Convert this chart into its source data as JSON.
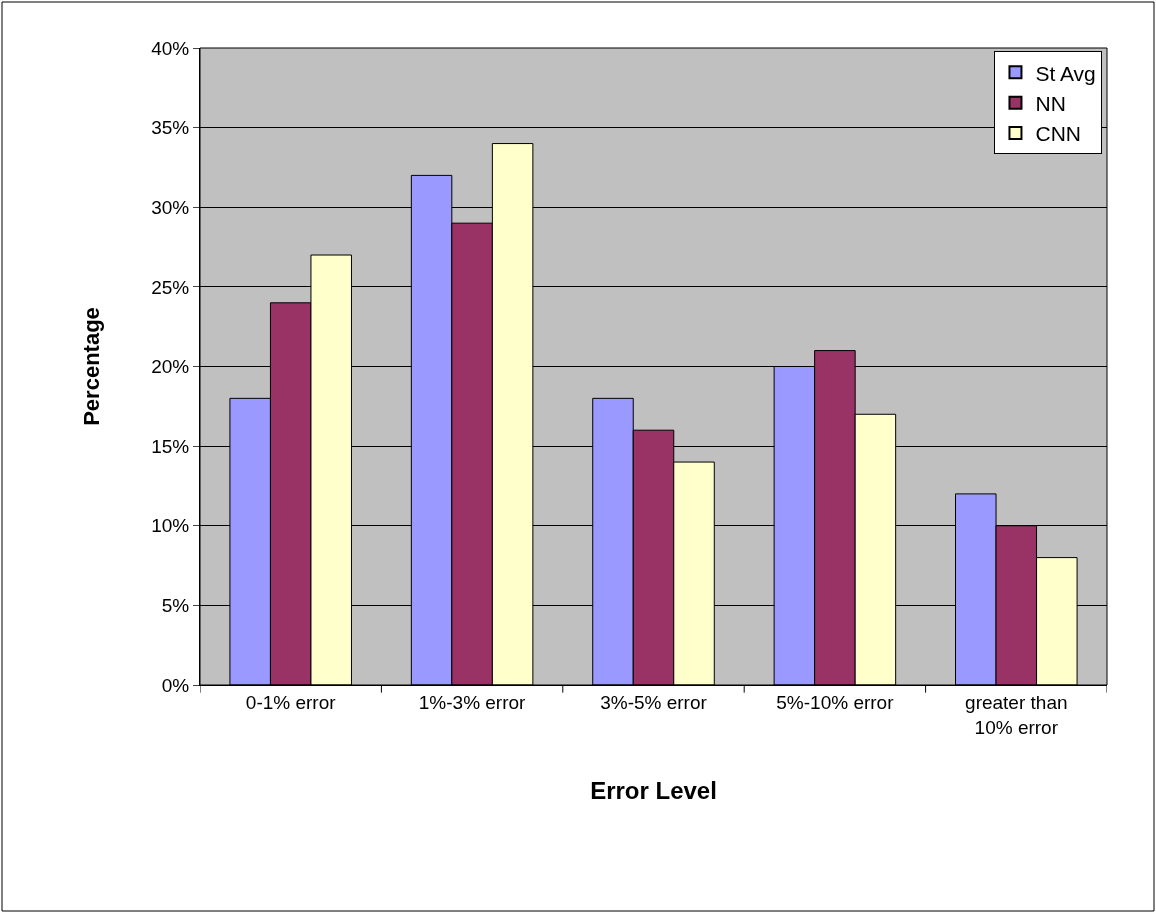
{
  "chart_data": {
    "type": "bar",
    "xlabel": "Error Level",
    "ylabel": "Percentage",
    "categories": [
      "0-1% error",
      "1%-3% error",
      "3%-5% error",
      "5%-10% error",
      "greater than 10% error"
    ],
    "series": [
      {
        "name": "St Avg",
        "color": "#9999ff",
        "values": [
          18,
          32,
          18,
          20,
          12
        ]
      },
      {
        "name": "NN",
        "color": "#993366",
        "values": [
          24,
          29,
          16,
          21,
          10
        ]
      },
      {
        "name": "CNN",
        "color": "#ffffcc",
        "values": [
          27,
          34,
          14,
          17,
          8
        ]
      }
    ],
    "ylim": [
      0,
      40
    ],
    "yticks": [
      {
        "value": 0,
        "label": "0%"
      },
      {
        "value": 5,
        "label": "5%"
      },
      {
        "value": 10,
        "label": "10%"
      },
      {
        "value": 15,
        "label": "15%"
      },
      {
        "value": 20,
        "label": "20%"
      },
      {
        "value": 25,
        "label": "25%"
      },
      {
        "value": 30,
        "label": "30%"
      },
      {
        "value": 35,
        "label": "35%"
      },
      {
        "value": 40,
        "label": "40%"
      }
    ],
    "grid": "y",
    "legend": "top right"
  }
}
